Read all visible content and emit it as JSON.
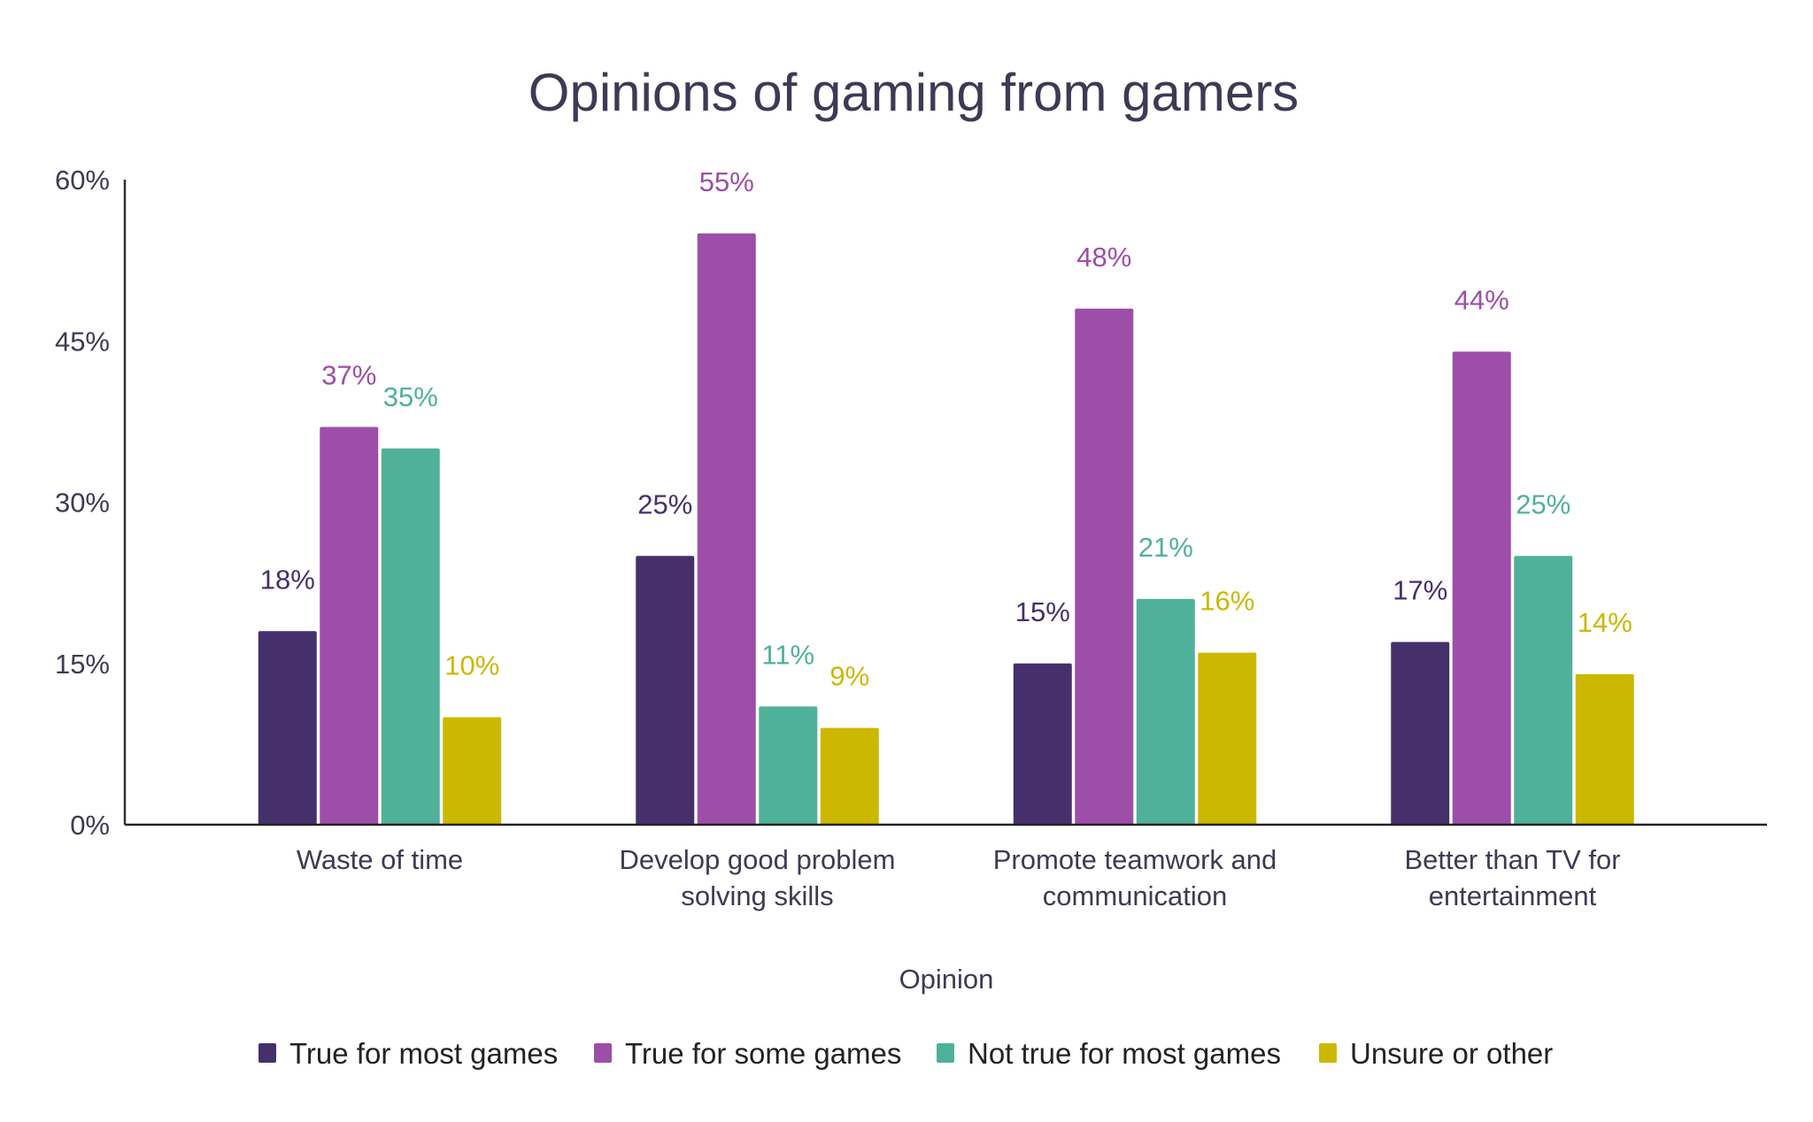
{
  "chart_data": {
    "type": "bar",
    "title": "Opinions of gaming from gamers",
    "xlabel": "Opinion",
    "ylabel": "",
    "ylim": [
      0,
      60
    ],
    "yticks": [
      "0%",
      "15%",
      "30%",
      "45%",
      "60%"
    ],
    "ytick_values": [
      0,
      15,
      30,
      45,
      60
    ],
    "grid": false,
    "legend_position": "bottom",
    "categories": [
      [
        "Waste of time"
      ],
      [
        "Develop good problem",
        "solving skills"
      ],
      [
        "Promote teamwork and",
        "communication"
      ],
      [
        "Better than TV for",
        "entertainment"
      ]
    ],
    "series": [
      {
        "name": "True for most games",
        "color": "#45306b",
        "values": [
          18,
          25,
          15,
          17
        ],
        "labels": [
          "18%",
          "25%",
          "15%",
          "17%"
        ]
      },
      {
        "name": "True for some games",
        "color": "#9d4ea9",
        "values": [
          37,
          55,
          48,
          44
        ],
        "labels": [
          "37%",
          "55%",
          "48%",
          "44%"
        ]
      },
      {
        "name": "Not true for most games",
        "color": "#50b19a",
        "values": [
          35,
          11,
          21,
          25
        ],
        "labels": [
          "35%",
          "11%",
          "21%",
          "25%"
        ]
      },
      {
        "name": "Unsure or other",
        "color": "#ccb800",
        "values": [
          10,
          9,
          16,
          14
        ],
        "labels": [
          "10%",
          "9%",
          "16%",
          "14%"
        ]
      }
    ]
  }
}
